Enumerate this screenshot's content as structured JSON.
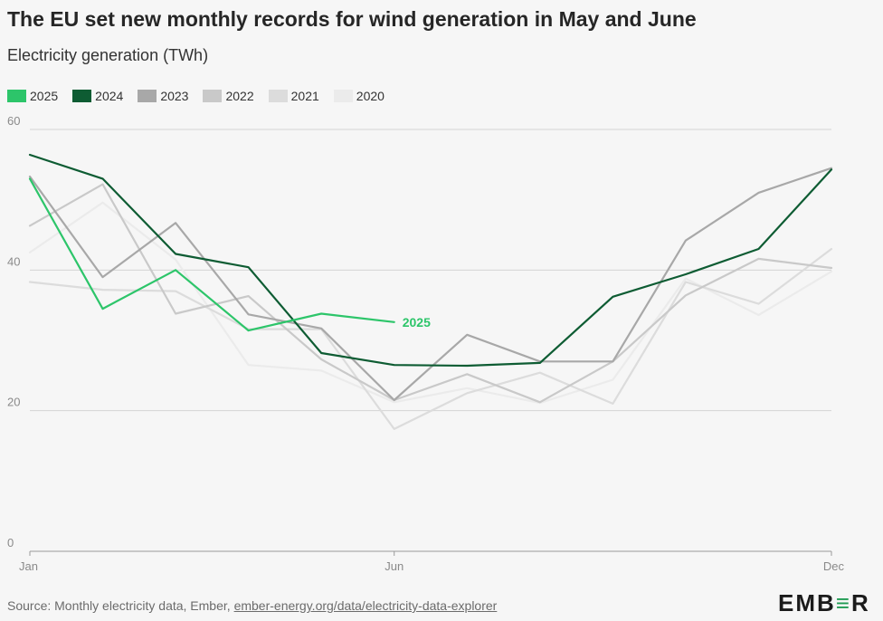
{
  "header": {
    "title": "The EU set new monthly records for wind generation in May and June",
    "subtitle": "Electricity generation (TWh)"
  },
  "footer": {
    "source_prefix": "Source: Monthly electricity data, Ember, ",
    "source_link": "ember-energy.org/data/electricity-data-explorer",
    "logo_left": "EMB",
    "logo_mark": "≡",
    "logo_right": "R"
  },
  "chart_data": {
    "type": "line",
    "title": "The EU set new monthly records for wind generation in May and June",
    "subtitle": "Electricity generation (TWh)",
    "xlabel": "",
    "ylabel": "",
    "x": [
      "Jan",
      "Feb",
      "Mar",
      "Apr",
      "May",
      "Jun",
      "Jul",
      "Aug",
      "Sep",
      "Oct",
      "Nov",
      "Dec"
    ],
    "x_tick_labels": [
      "Jan",
      "Jun",
      "Dec"
    ],
    "ylim": [
      0,
      60
    ],
    "y_ticks": [
      0,
      20,
      40,
      60
    ],
    "grid": true,
    "legend_position": "top-left",
    "series": [
      {
        "name": "2020",
        "color": "#ebebeb",
        "values": [
          42.5,
          49.6,
          41.5,
          26.5,
          25.7,
          21.2,
          23.2,
          21.1,
          24.4,
          38.8,
          33.6,
          39.8
        ]
      },
      {
        "name": "2021",
        "color": "#dcdcdc",
        "values": [
          38.3,
          37.2,
          37.0,
          31.6,
          31.6,
          17.4,
          22.5,
          25.4,
          21.0,
          38.3,
          35.2,
          43.0
        ]
      },
      {
        "name": "2022",
        "color": "#c9c9c9",
        "values": [
          46.3,
          52.2,
          33.8,
          36.3,
          27.3,
          21.5,
          25.2,
          21.2,
          27.0,
          36.4,
          41.6,
          40.3
        ]
      },
      {
        "name": "2023",
        "color": "#a8a8a8",
        "values": [
          53.3,
          39.0,
          46.7,
          33.7,
          31.7,
          21.5,
          30.8,
          27.0,
          27.0,
          44.2,
          51.0,
          54.5
        ]
      },
      {
        "name": "2024",
        "color": "#0e5c33",
        "values": [
          56.4,
          53.0,
          42.3,
          40.4,
          28.2,
          26.5,
          26.4,
          26.8,
          36.2,
          39.4,
          43.0,
          54.3
        ]
      },
      {
        "name": "2025",
        "color": "#2dc56a",
        "values": [
          53.0,
          34.5,
          40.0,
          31.4,
          33.8,
          32.6,
          null,
          null,
          null,
          null,
          null,
          null
        ]
      }
    ],
    "annotations": [
      {
        "text": "2025",
        "series": "2025",
        "x": "Jun",
        "y": 32.6
      }
    ]
  }
}
